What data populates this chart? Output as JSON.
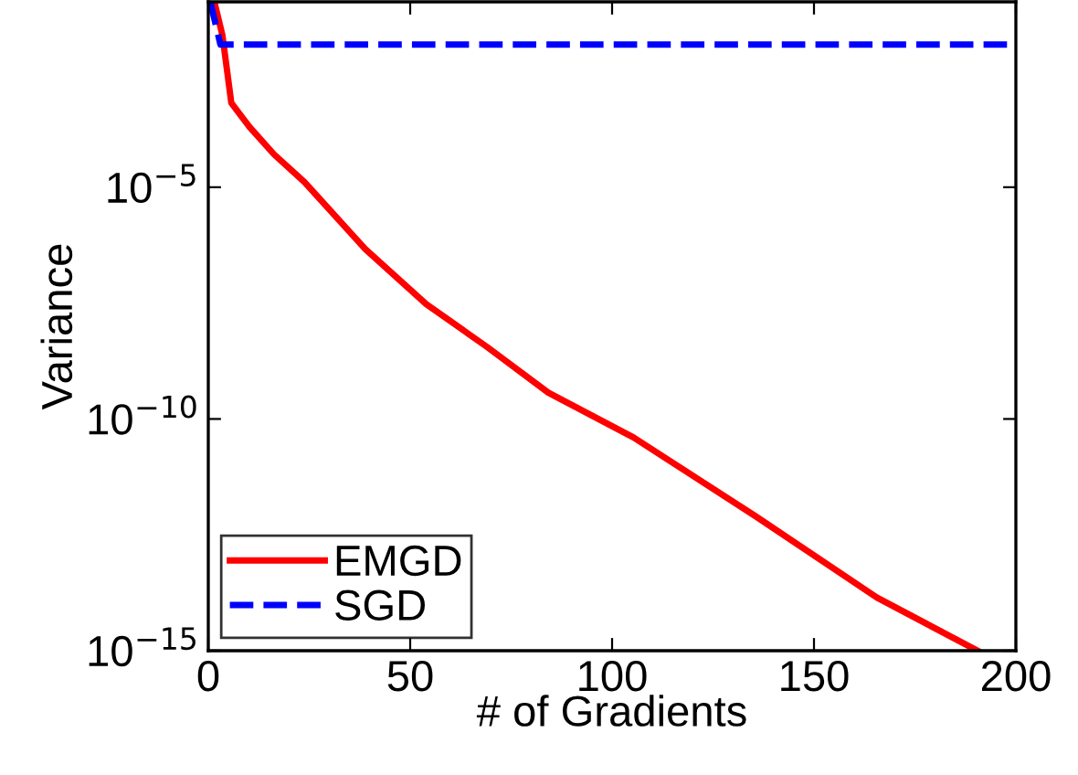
{
  "chart_data": {
    "type": "line",
    "xlabel": "# of Gradients",
    "ylabel": "Variance",
    "log": "y",
    "xlim": [
      0,
      200
    ],
    "xticks": [
      0,
      50,
      100,
      150,
      200
    ],
    "ylim": [
      1e-15,
      0.1
    ],
    "yticks": [
      {
        "value": 1e-15,
        "label": "10$^{−15}$"
      },
      {
        "value": 1e-10,
        "label": "10$^{−10}$"
      },
      {
        "value": 1e-05,
        "label": "10$^{−5}$"
      }
    ],
    "grid": false,
    "legend": "bottom left",
    "series": [
      {
        "name": "EMGD",
        "color": "#ff0000",
        "line_style": "solid",
        "x": [
          1.5,
          3.5,
          5.7,
          10.2,
          16.3,
          23.8,
          38.9,
          54,
          69,
          84.2,
          105.3,
          135.5,
          165.6,
          190.5
        ],
        "values": [
          0.1,
          0.019,
          0.00066,
          0.0002,
          5.1e-05,
          1.3e-05,
          4.6e-07,
          3e-08,
          3.6e-09,
          3.7e-10,
          4e-11,
          8e-13,
          1.4e-14,
          1e-15
        ]
      },
      {
        "name": "SGD",
        "color": "#0000ff",
        "line_style": "dashed",
        "x": [
          0.5,
          3,
          200
        ],
        "values": [
          0.1,
          0.012,
          0.012
        ]
      }
    ]
  }
}
